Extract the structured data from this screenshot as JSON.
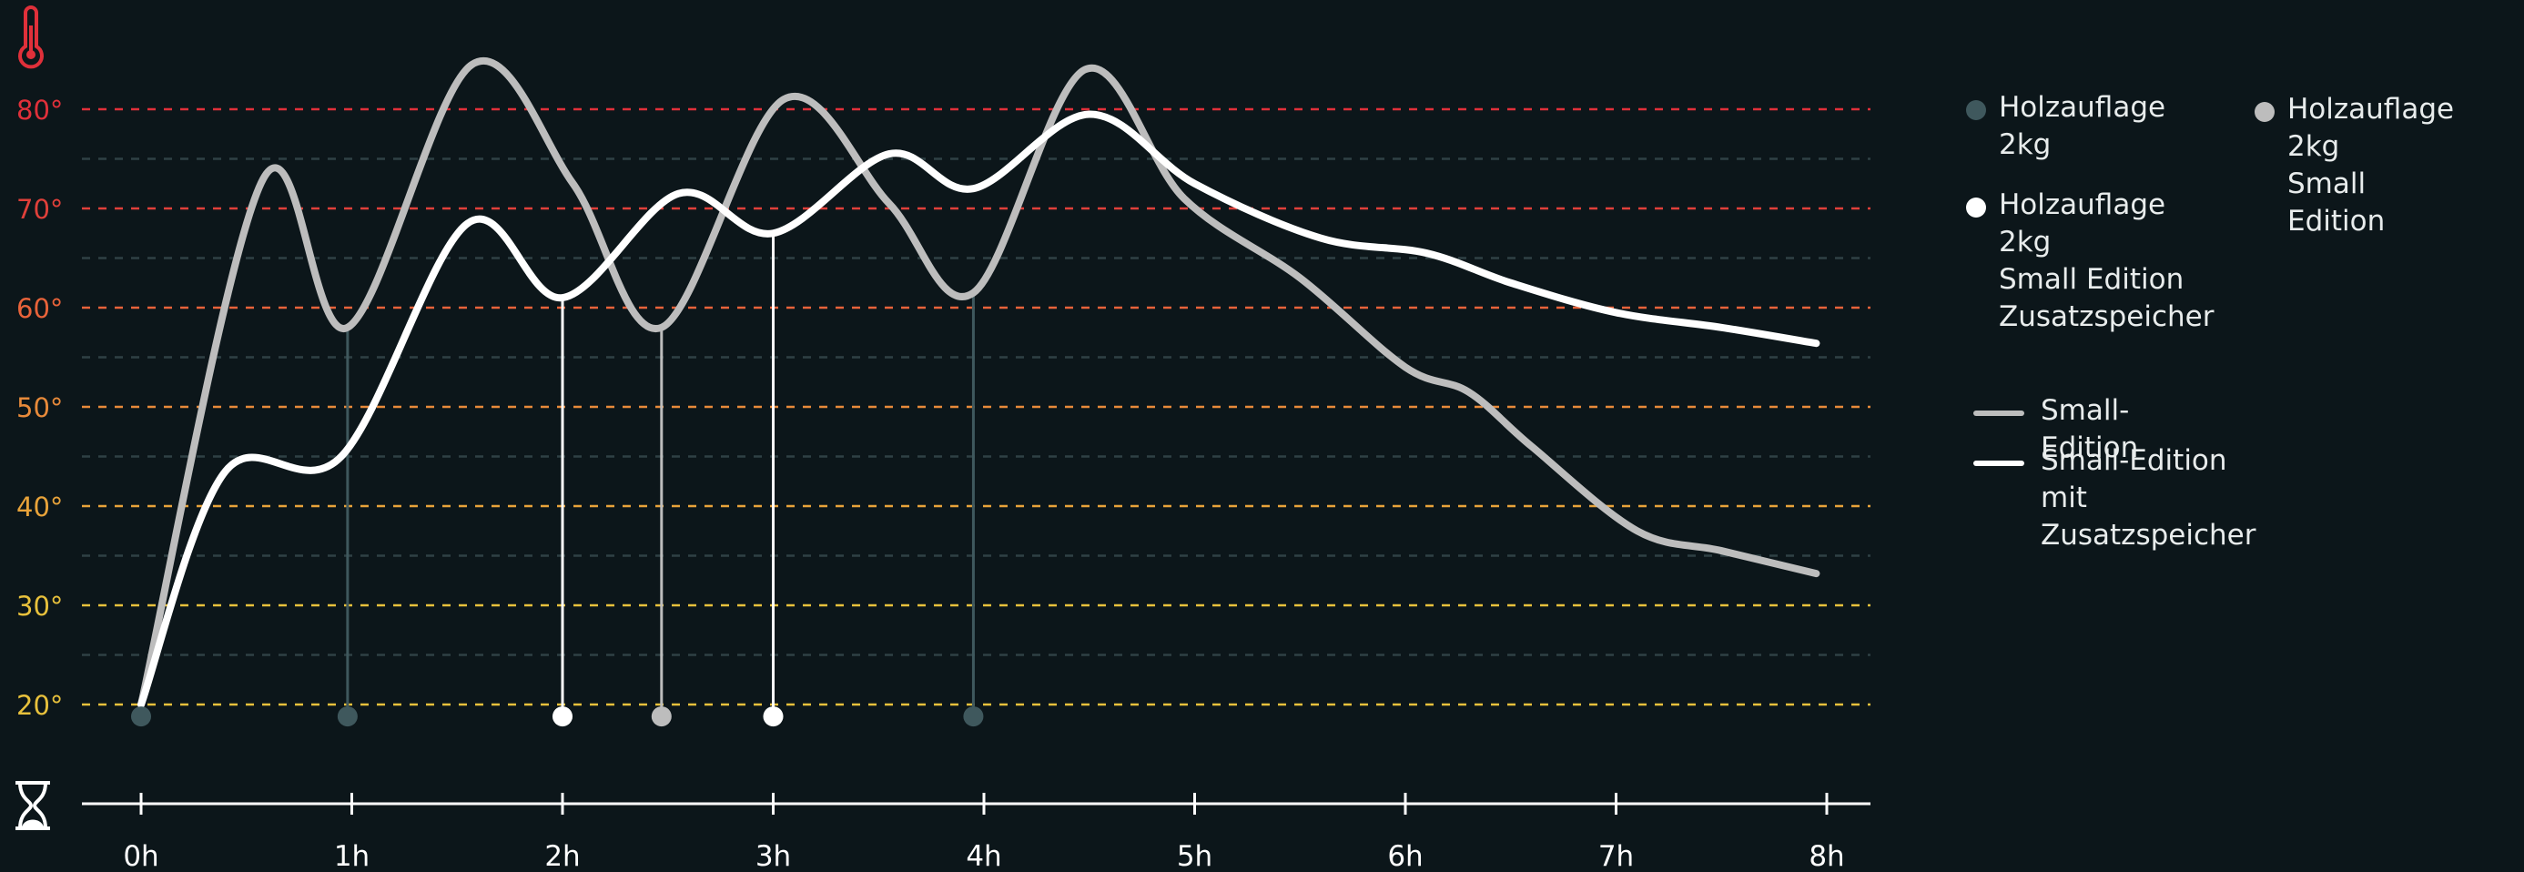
{
  "chart_data": {
    "type": "line",
    "xlabel": "",
    "ylabel": "",
    "xlim": [
      0,
      8
    ],
    "ylim": [
      20,
      80
    ],
    "x_ticks": [
      "0h",
      "1h",
      "2h",
      "3h",
      "4h",
      "5h",
      "6h",
      "7h",
      "8h"
    ],
    "y_ticks": [
      "20°",
      "30°",
      "40°",
      "50°",
      "60°",
      "70°",
      "80°"
    ],
    "y_tick_values": [
      20,
      30,
      40,
      50,
      60,
      70,
      80
    ],
    "y_tick_colors": [
      "#e8c13c",
      "#e8c13c",
      "#e8a33a",
      "#e88a3a",
      "#e8633a",
      "#e0403a",
      "#e0303a"
    ],
    "minor_gridlines": [
      25,
      35,
      45,
      55,
      65,
      75
    ],
    "minor_grid_color": "#2f4044",
    "legend_position": "right",
    "series": [
      {
        "name": "Small-Edition",
        "color": "#bdbdbd",
        "x": [
          0,
          0.58,
          0.98,
          1.57,
          2.05,
          2.47,
          3.05,
          3.55,
          3.95,
          4.48,
          4.95,
          5.5,
          6.0,
          6.3,
          6.6,
          7.1,
          7.5,
          7.95
        ],
        "y": [
          20,
          73,
          58,
          84.5,
          72.5,
          58,
          81,
          70.5,
          61.5,
          84,
          71,
          63,
          54,
          51.5,
          46,
          37.5,
          35.5,
          33.2
        ]
      },
      {
        "name": "Small-Edition mit Zusatzspeicher",
        "color": "#ffffff",
        "x": [
          0,
          0.4,
          0.95,
          1.55,
          2.0,
          2.55,
          3.0,
          3.55,
          3.95,
          4.5,
          5.0,
          5.6,
          6.1,
          6.5,
          7.0,
          7.5,
          7.95
        ],
        "y": [
          20,
          43.5,
          45,
          68.5,
          61,
          71.5,
          67.5,
          75.5,
          72,
          79.5,
          72.5,
          67,
          65.5,
          62.5,
          59.5,
          58,
          56.4
        ]
      }
    ],
    "markers": [
      {
        "group": "Holzauflage 2kg",
        "x": 0,
        "y_line": 20,
        "color": "#3f585d"
      },
      {
        "group": "Holzauflage 2kg",
        "x": 0.98,
        "y_line": 58,
        "color": "#3f585d"
      },
      {
        "group": "Holzauflage 2kg",
        "x": 3.95,
        "y_line": 61.5,
        "color": "#3f585d"
      },
      {
        "group": "Holzauflage 2kg Small Edition",
        "x": 2.47,
        "y_line": 58,
        "color": "#bdbdbd"
      },
      {
        "group": "Holzauflage 2kg Small Edition Zusatzspeicher",
        "x": 2.0,
        "y_line": 61,
        "color": "#ffffff"
      },
      {
        "group": "Holzauflage 2kg Small Edition Zusatzspeicher",
        "x": 3.0,
        "y_line": 67.5,
        "color": "#ffffff"
      }
    ],
    "marker_base_value": 18.8
  },
  "legend": {
    "marker_items": [
      {
        "label": "Holzauflage 2kg",
        "color": "#3f585d"
      },
      {
        "label": "Holzauflage 2kg\nSmall Edition",
        "color": "#bdbdbd"
      },
      {
        "label": "Holzauflage 2kg\nSmall Edition Zusatzspeicher",
        "color": "#ffffff"
      }
    ],
    "line_items": [
      {
        "label": "Small-Edition",
        "color": "#bdbdbd"
      },
      {
        "label": "Small-Edition mit Zusatzspeicher",
        "color": "#ffffff"
      }
    ]
  },
  "icons": {
    "temperature": "thermometer-icon",
    "time": "hourglass-icon",
    "thermometer_color": "#e0303a",
    "hourglass_color": "#ffffff"
  }
}
